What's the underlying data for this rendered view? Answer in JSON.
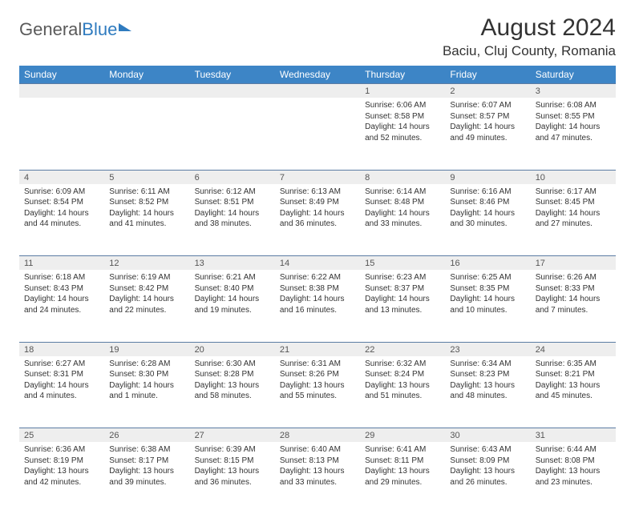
{
  "logo": {
    "text1": "General",
    "text2": "Blue"
  },
  "title": "August 2024",
  "location": "Baciu, Cluj County, Romania",
  "colors": {
    "header_bg": "#3d85c6",
    "header_fg": "#ffffff",
    "daynum_bg": "#eeeeee",
    "cell_border": "#5b7ca3",
    "text": "#333333",
    "logo_gray": "#5a5a5a",
    "logo_blue": "#2f7bbf"
  },
  "weekdays": [
    "Sunday",
    "Monday",
    "Tuesday",
    "Wednesday",
    "Thursday",
    "Friday",
    "Saturday"
  ],
  "weeks": [
    {
      "nums": [
        "",
        "",
        "",
        "",
        "1",
        "2",
        "3"
      ],
      "cells": [
        "",
        "",
        "",
        "",
        "Sunrise: 6:06 AM\nSunset: 8:58 PM\nDaylight: 14 hours and 52 minutes.",
        "Sunrise: 6:07 AM\nSunset: 8:57 PM\nDaylight: 14 hours and 49 minutes.",
        "Sunrise: 6:08 AM\nSunset: 8:55 PM\nDaylight: 14 hours and 47 minutes."
      ]
    },
    {
      "nums": [
        "4",
        "5",
        "6",
        "7",
        "8",
        "9",
        "10"
      ],
      "cells": [
        "Sunrise: 6:09 AM\nSunset: 8:54 PM\nDaylight: 14 hours and 44 minutes.",
        "Sunrise: 6:11 AM\nSunset: 8:52 PM\nDaylight: 14 hours and 41 minutes.",
        "Sunrise: 6:12 AM\nSunset: 8:51 PM\nDaylight: 14 hours and 38 minutes.",
        "Sunrise: 6:13 AM\nSunset: 8:49 PM\nDaylight: 14 hours and 36 minutes.",
        "Sunrise: 6:14 AM\nSunset: 8:48 PM\nDaylight: 14 hours and 33 minutes.",
        "Sunrise: 6:16 AM\nSunset: 8:46 PM\nDaylight: 14 hours and 30 minutes.",
        "Sunrise: 6:17 AM\nSunset: 8:45 PM\nDaylight: 14 hours and 27 minutes."
      ]
    },
    {
      "nums": [
        "11",
        "12",
        "13",
        "14",
        "15",
        "16",
        "17"
      ],
      "cells": [
        "Sunrise: 6:18 AM\nSunset: 8:43 PM\nDaylight: 14 hours and 24 minutes.",
        "Sunrise: 6:19 AM\nSunset: 8:42 PM\nDaylight: 14 hours and 22 minutes.",
        "Sunrise: 6:21 AM\nSunset: 8:40 PM\nDaylight: 14 hours and 19 minutes.",
        "Sunrise: 6:22 AM\nSunset: 8:38 PM\nDaylight: 14 hours and 16 minutes.",
        "Sunrise: 6:23 AM\nSunset: 8:37 PM\nDaylight: 14 hours and 13 minutes.",
        "Sunrise: 6:25 AM\nSunset: 8:35 PM\nDaylight: 14 hours and 10 minutes.",
        "Sunrise: 6:26 AM\nSunset: 8:33 PM\nDaylight: 14 hours and 7 minutes."
      ]
    },
    {
      "nums": [
        "18",
        "19",
        "20",
        "21",
        "22",
        "23",
        "24"
      ],
      "cells": [
        "Sunrise: 6:27 AM\nSunset: 8:31 PM\nDaylight: 14 hours and 4 minutes.",
        "Sunrise: 6:28 AM\nSunset: 8:30 PM\nDaylight: 14 hours and 1 minute.",
        "Sunrise: 6:30 AM\nSunset: 8:28 PM\nDaylight: 13 hours and 58 minutes.",
        "Sunrise: 6:31 AM\nSunset: 8:26 PM\nDaylight: 13 hours and 55 minutes.",
        "Sunrise: 6:32 AM\nSunset: 8:24 PM\nDaylight: 13 hours and 51 minutes.",
        "Sunrise: 6:34 AM\nSunset: 8:23 PM\nDaylight: 13 hours and 48 minutes.",
        "Sunrise: 6:35 AM\nSunset: 8:21 PM\nDaylight: 13 hours and 45 minutes."
      ]
    },
    {
      "nums": [
        "25",
        "26",
        "27",
        "28",
        "29",
        "30",
        "31"
      ],
      "cells": [
        "Sunrise: 6:36 AM\nSunset: 8:19 PM\nDaylight: 13 hours and 42 minutes.",
        "Sunrise: 6:38 AM\nSunset: 8:17 PM\nDaylight: 13 hours and 39 minutes.",
        "Sunrise: 6:39 AM\nSunset: 8:15 PM\nDaylight: 13 hours and 36 minutes.",
        "Sunrise: 6:40 AM\nSunset: 8:13 PM\nDaylight: 13 hours and 33 minutes.",
        "Sunrise: 6:41 AM\nSunset: 8:11 PM\nDaylight: 13 hours and 29 minutes.",
        "Sunrise: 6:43 AM\nSunset: 8:09 PM\nDaylight: 13 hours and 26 minutes.",
        "Sunrise: 6:44 AM\nSunset: 8:08 PM\nDaylight: 13 hours and 23 minutes."
      ]
    }
  ]
}
